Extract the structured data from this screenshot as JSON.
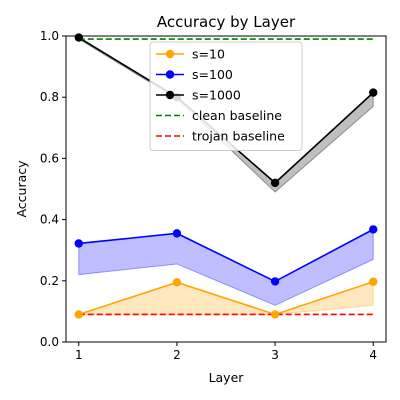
{
  "chart_data": {
    "type": "line",
    "title": "Accuracy by Layer",
    "xlabel": "Layer",
    "ylabel": "Accuracy",
    "x": [
      1,
      2,
      3,
      4
    ],
    "xlim": [
      0.87,
      4.13
    ],
    "ylim": [
      0.0,
      1.0
    ],
    "xticks": [
      "1",
      "2",
      "3",
      "4"
    ],
    "yticks": [
      "0.0",
      "0.2",
      "0.4",
      "0.6",
      "0.8",
      "1.0"
    ],
    "grid": false,
    "legend_position": "top-center",
    "series": [
      {
        "name": "s=10",
        "color": "#ffa500",
        "values": [
          0.09,
          0.195,
          0.09,
          0.197
        ],
        "band_low": [
          0.09,
          0.09,
          0.09,
          0.12
        ],
        "marker": "circle"
      },
      {
        "name": "s=100",
        "color": "#0000ff",
        "values": [
          0.322,
          0.355,
          0.198,
          0.368
        ],
        "band_low": [
          0.22,
          0.255,
          0.12,
          0.27
        ],
        "marker": "circle"
      },
      {
        "name": "s=1000",
        "color": "#000000",
        "values": [
          0.995,
          0.8,
          0.52,
          0.815
        ],
        "band_low": [
          0.99,
          0.795,
          0.49,
          0.77
        ],
        "marker": "circle"
      },
      {
        "name": "clean baseline",
        "color": "#008000",
        "values": [
          0.99,
          0.99,
          0.99,
          0.99
        ],
        "dashed": true
      },
      {
        "name": "trojan baseline",
        "color": "#ff0000",
        "values": [
          0.09,
          0.09,
          0.09,
          0.09
        ],
        "dashed": true
      }
    ]
  }
}
